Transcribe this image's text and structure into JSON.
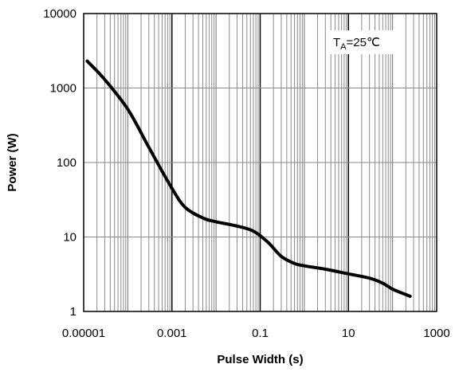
{
  "chart_data": {
    "type": "line",
    "title": "",
    "xlabel": "Pulse Width (s)",
    "ylabel": "Power (W)",
    "x_scale": "log",
    "y_scale": "log",
    "xlim": [
      1e-05,
      1000
    ],
    "ylim": [
      1,
      10000
    ],
    "x_ticks": [
      "0.00001",
      "0.001",
      "0.1",
      "10",
      "1000"
    ],
    "y_ticks": [
      "1",
      "10",
      "100",
      "1000",
      "10000"
    ],
    "grid": true,
    "annotation": {
      "main": "T",
      "sub": "A",
      "rest": "=25℃"
    },
    "series": [
      {
        "color": "#000000",
        "x": [
          1.2e-05,
          3e-05,
          0.0001,
          0.0003,
          0.001,
          0.002,
          0.005,
          0.01,
          0.03,
          0.07,
          0.15,
          0.3,
          0.6,
          1,
          3,
          10,
          30,
          60,
          100,
          250
        ],
        "y": [
          2300,
          1300,
          520,
          160,
          45,
          25,
          18,
          16,
          14,
          12,
          8.5,
          5.5,
          4.4,
          4.1,
          3.7,
          3.2,
          2.8,
          2.4,
          2.0,
          1.6
        ]
      }
    ]
  }
}
